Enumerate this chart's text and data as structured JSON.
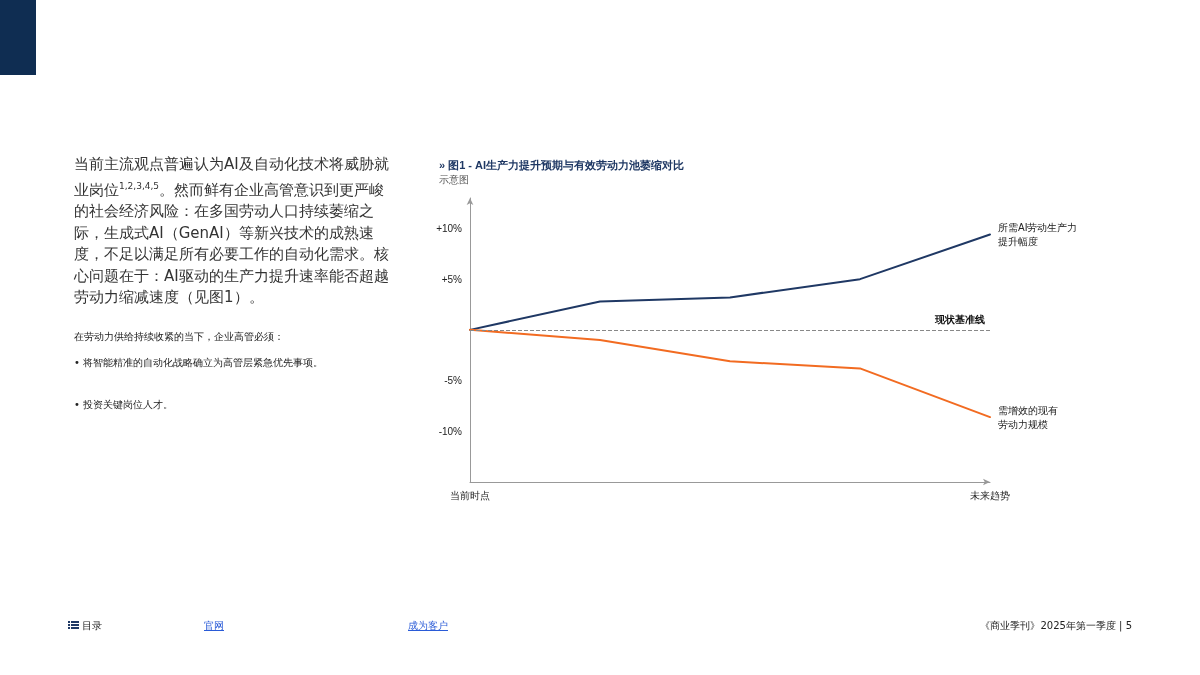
{
  "chart_data": {
    "type": "line",
    "title": "» 图1 - AI生产力提升预期与有效劳动力池萎缩对比",
    "subtitle": "示意图",
    "annotations": [
      "当前主流观点普遍认为AI及自动化技术将威胁就业岗位$^{1,2,3,4,5}$。然而鲜有企业高管意识到更严峻的社会经济风险：在多国劳动人口持续萎缩之际，生成式AI（GenAI）等新兴技术的成熟速度，不足以满足所有必要工作的自动化需求。核心问题在于：AI驱动的生产力提升速率能否超越劳动力缩减速度（见图1）。",
      "在劳动力供给持续收紧的当下，企业高管必须：",
      "• 将智能精准的自动化战略确立为高管层紧急优先事项。",
      "• 投资关键岗位人才。",
      "目录",
      "官网",
      "成为客户",
      "《商业季刊》2025年第一季度 | 5"
    ],
    "categories": [
      "当前时点",
      null,
      null,
      null,
      "未来趋势"
    ],
    "ylim": [
      -15,
      13
    ],
    "yticks": [
      {
        "value": -10,
        "label": "-10%"
      },
      {
        "value": -5,
        "label": "-5%"
      },
      {
        "value": 5,
        "label": "+5%"
      },
      {
        "value": 10,
        "label": "+10%"
      }
    ],
    "series": [
      {
        "name": "所需AI劳动生产力提升幅度",
        "color": "#1f3864",
        "values": [
          0,
          2.8,
          3.2,
          5.0,
          9.4
        ]
      },
      {
        "name": "需增效的现有劳动力规模",
        "color": "#f26b21",
        "values": [
          0,
          -1.0,
          -3.1,
          -3.8,
          -8.6
        ]
      }
    ],
    "ref_lines": [
      {
        "axis": "y",
        "value": 0,
        "label": "现状基准线",
        "color": "#888888",
        "line_style": "dashed"
      }
    ],
    "grid": false,
    "marker": "none",
    "line_style": "solid"
  }
}
